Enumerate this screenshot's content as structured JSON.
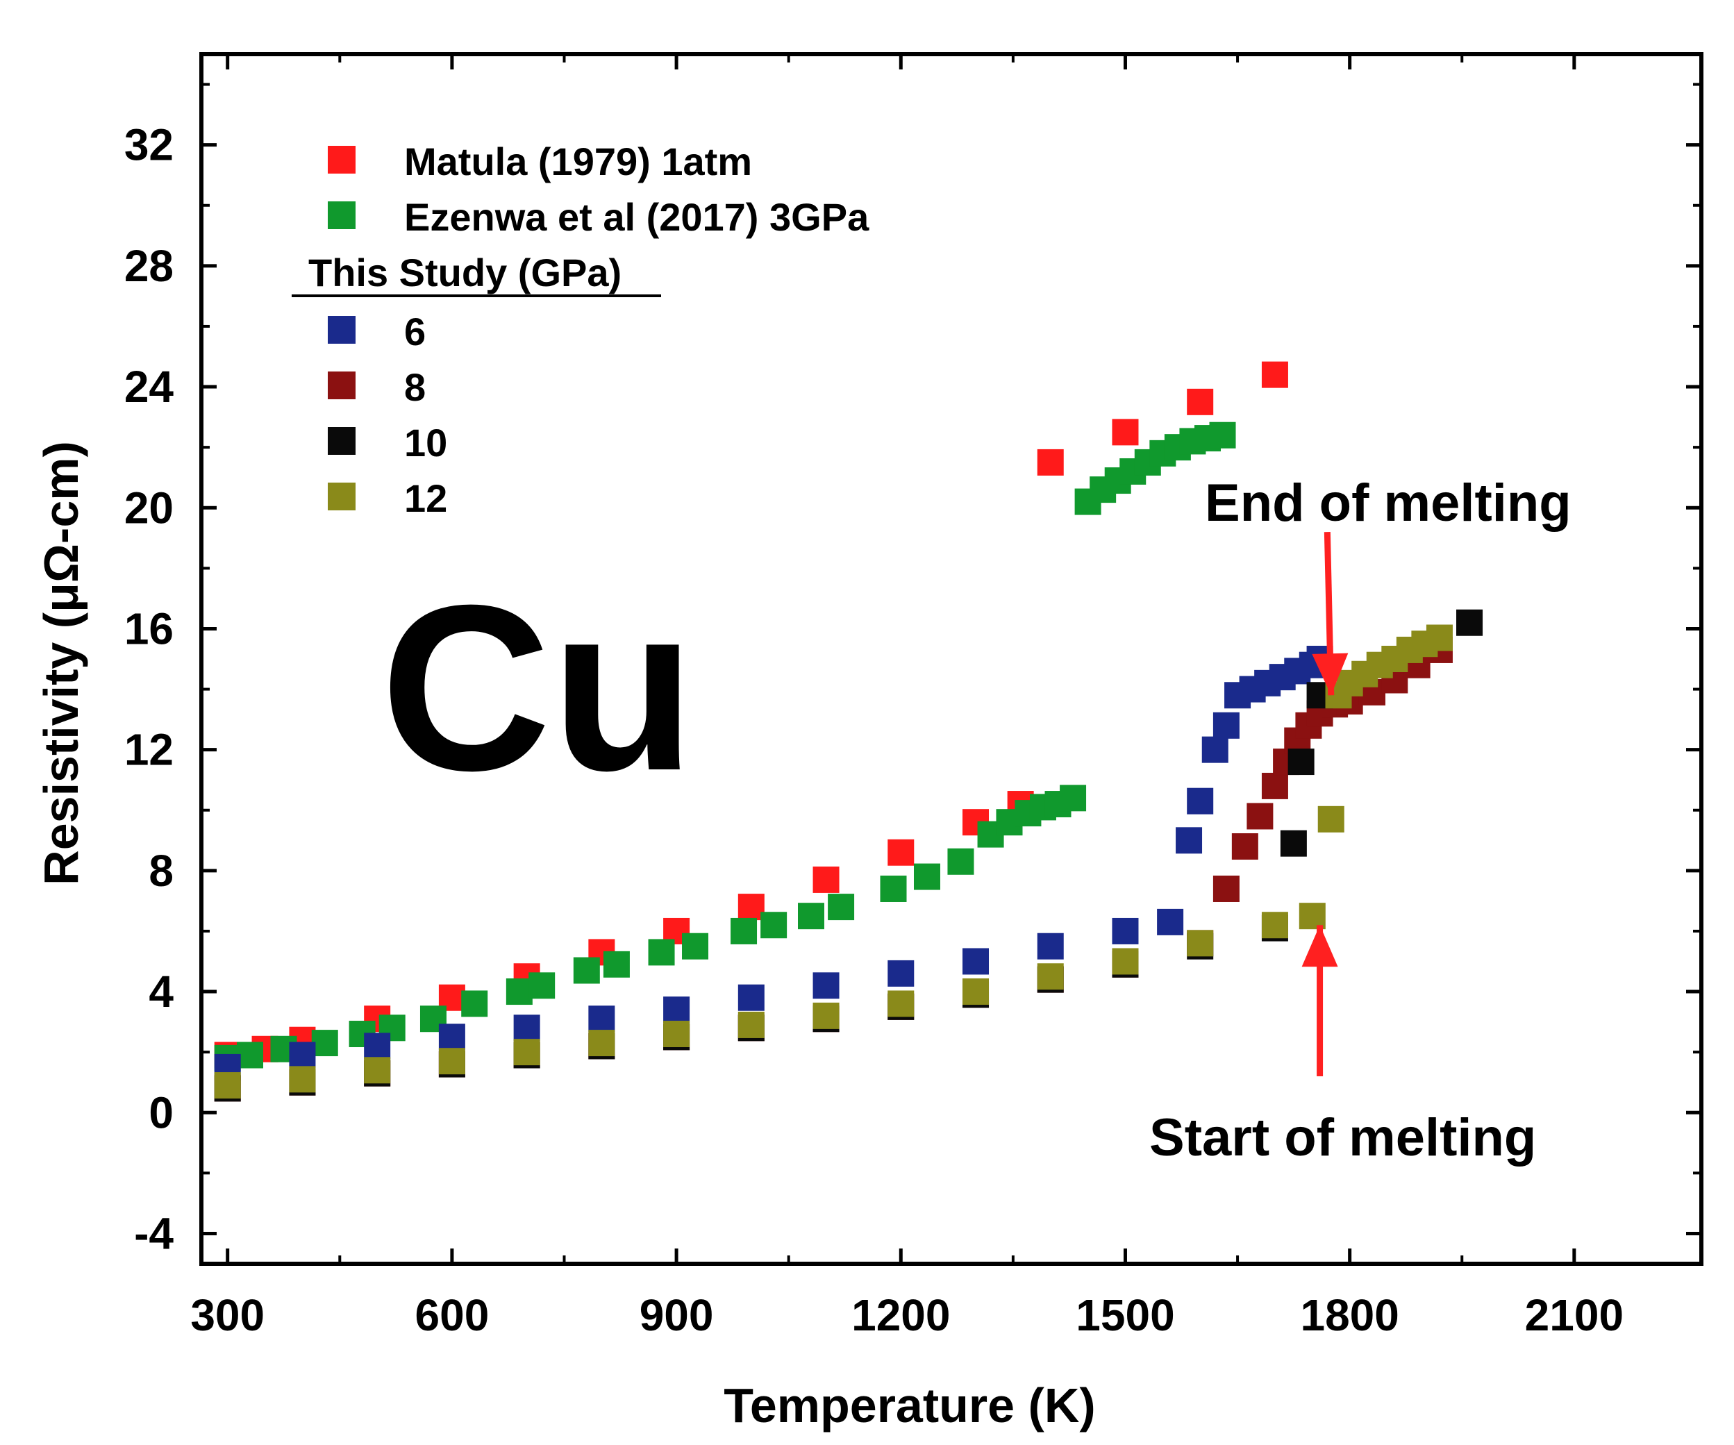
{
  "chart_data": {
    "type": "scatter",
    "title": "",
    "big_label": "Cu",
    "xlabel": "Temperature (K)",
    "ylabel": "Resistivity (μΩ-cm)",
    "xlim": [
      265,
      2270
    ],
    "ylim": [
      -5,
      35
    ],
    "x_ticks": [
      300,
      600,
      900,
      1200,
      1500,
      1800,
      2100
    ],
    "x_tick_labels": [
      "300",
      "600",
      "900",
      "1200",
      "1500",
      "1800",
      "2100"
    ],
    "y_ticks": [
      -4,
      0,
      4,
      8,
      12,
      16,
      20,
      24,
      28,
      32
    ],
    "y_tick_labels": [
      "-4",
      "0",
      "4",
      "8",
      "12",
      "16",
      "20",
      "24",
      "28",
      "32"
    ],
    "legend": {
      "placement": "top-left",
      "entries": [
        "Matula (1979) 1atm",
        "Ezenwa et al (2017) 3GPa"
      ],
      "subheading": "This Study (GPa)",
      "study_entries": [
        "6",
        "8",
        "10",
        "12"
      ]
    },
    "annotations": {
      "end_of_melting": "End of melting",
      "start_of_melting": "Start of melting",
      "arrow_color": "#ff2020",
      "end_arrow_from": [
        1770,
        19.2
      ],
      "end_arrow_to": [
        1775,
        13.8
      ],
      "start_arrow_from": [
        1760,
        1.2
      ],
      "start_arrow_to": [
        1760,
        6.2
      ]
    },
    "series": [
      {
        "name": "Matula (1979) 1atm",
        "color": "#ff1a1a",
        "x": [
          300,
          350,
          400,
          500,
          600,
          700,
          800,
          900,
          1000,
          1100,
          1200,
          1300,
          1360,
          1400,
          1500,
          1600,
          1700
        ],
        "y": [
          1.9,
          2.1,
          2.4,
          3.1,
          3.8,
          4.5,
          5.3,
          6.0,
          6.8,
          7.7,
          8.6,
          9.6,
          10.2,
          21.5,
          22.5,
          23.5,
          24.4
        ]
      },
      {
        "name": "Ezenwa et al (2017) 3GPa",
        "color": "#10992d",
        "x": [
          300,
          330,
          375,
          430,
          480,
          520,
          575,
          630,
          690,
          720,
          780,
          820,
          880,
          925,
          990,
          1030,
          1080,
          1120,
          1190,
          1235,
          1280,
          1320,
          1345,
          1370,
          1390,
          1410,
          1430,
          1450,
          1470,
          1490,
          1510,
          1530,
          1550,
          1570,
          1590,
          1610,
          1630
        ],
        "y": [
          1.8,
          1.9,
          2.1,
          2.3,
          2.6,
          2.8,
          3.1,
          3.6,
          4.0,
          4.2,
          4.7,
          4.9,
          5.3,
          5.5,
          6.0,
          6.2,
          6.5,
          6.8,
          7.4,
          7.8,
          8.3,
          9.2,
          9.6,
          9.9,
          10.1,
          10.2,
          10.4,
          20.2,
          20.6,
          20.9,
          21.2,
          21.5,
          21.8,
          22.0,
          22.2,
          22.3,
          22.4
        ]
      },
      {
        "name": "6",
        "color": "#1a2a8c",
        "x": [
          300,
          400,
          500,
          600,
          700,
          800,
          900,
          1000,
          1100,
          1200,
          1300,
          1400,
          1500,
          1560,
          1585,
          1600,
          1620,
          1635,
          1650,
          1670,
          1690,
          1710,
          1730,
          1750,
          1760
        ],
        "y": [
          1.5,
          1.9,
          2.2,
          2.5,
          2.8,
          3.1,
          3.4,
          3.8,
          4.2,
          4.6,
          5.0,
          5.5,
          6.0,
          6.3,
          9.0,
          10.3,
          12.0,
          12.8,
          13.8,
          14.0,
          14.2,
          14.4,
          14.6,
          14.8,
          15.0
        ]
      },
      {
        "name": "8",
        "color": "#8b1111",
        "x": [
          300,
          400,
          500,
          600,
          700,
          800,
          900,
          1000,
          1100,
          1200,
          1300,
          1400,
          1500,
          1600,
          1635,
          1660,
          1680,
          1700,
          1715,
          1730,
          1745,
          1760,
          1780,
          1800,
          1830,
          1860,
          1890,
          1920
        ],
        "y": [
          0.8,
          1.0,
          1.3,
          1.6,
          1.9,
          2.2,
          2.5,
          2.8,
          3.1,
          3.5,
          3.9,
          4.4,
          4.9,
          5.6,
          7.4,
          8.8,
          9.8,
          10.8,
          11.6,
          12.3,
          12.8,
          13.2,
          13.5,
          13.6,
          13.9,
          14.3,
          14.8,
          15.3
        ]
      },
      {
        "name": "10",
        "color": "#0a0a0a",
        "x": [
          300,
          400,
          500,
          600,
          700,
          800,
          900,
          1000,
          1100,
          1200,
          1300,
          1400,
          1500,
          1600,
          1700,
          1725,
          1735,
          1760,
          1960
        ],
        "y": [
          0.8,
          1.0,
          1.3,
          1.6,
          1.9,
          2.2,
          2.5,
          2.8,
          3.1,
          3.5,
          3.9,
          4.4,
          4.9,
          5.5,
          6.1,
          8.9,
          11.6,
          13.8,
          16.2
        ]
      },
      {
        "name": "12",
        "color": "#8a8a1a",
        "x": [
          300,
          400,
          500,
          600,
          700,
          800,
          900,
          1000,
          1100,
          1200,
          1300,
          1400,
          1500,
          1600,
          1700,
          1750,
          1775,
          1785,
          1800,
          1820,
          1840,
          1860,
          1880,
          1900,
          1920
        ],
        "y": [
          0.9,
          1.1,
          1.4,
          1.7,
          2.0,
          2.3,
          2.6,
          2.9,
          3.2,
          3.6,
          4.0,
          4.5,
          5.0,
          5.6,
          6.2,
          6.5,
          9.7,
          13.8,
          14.2,
          14.5,
          14.8,
          15.0,
          15.3,
          15.5,
          15.7
        ]
      }
    ]
  }
}
